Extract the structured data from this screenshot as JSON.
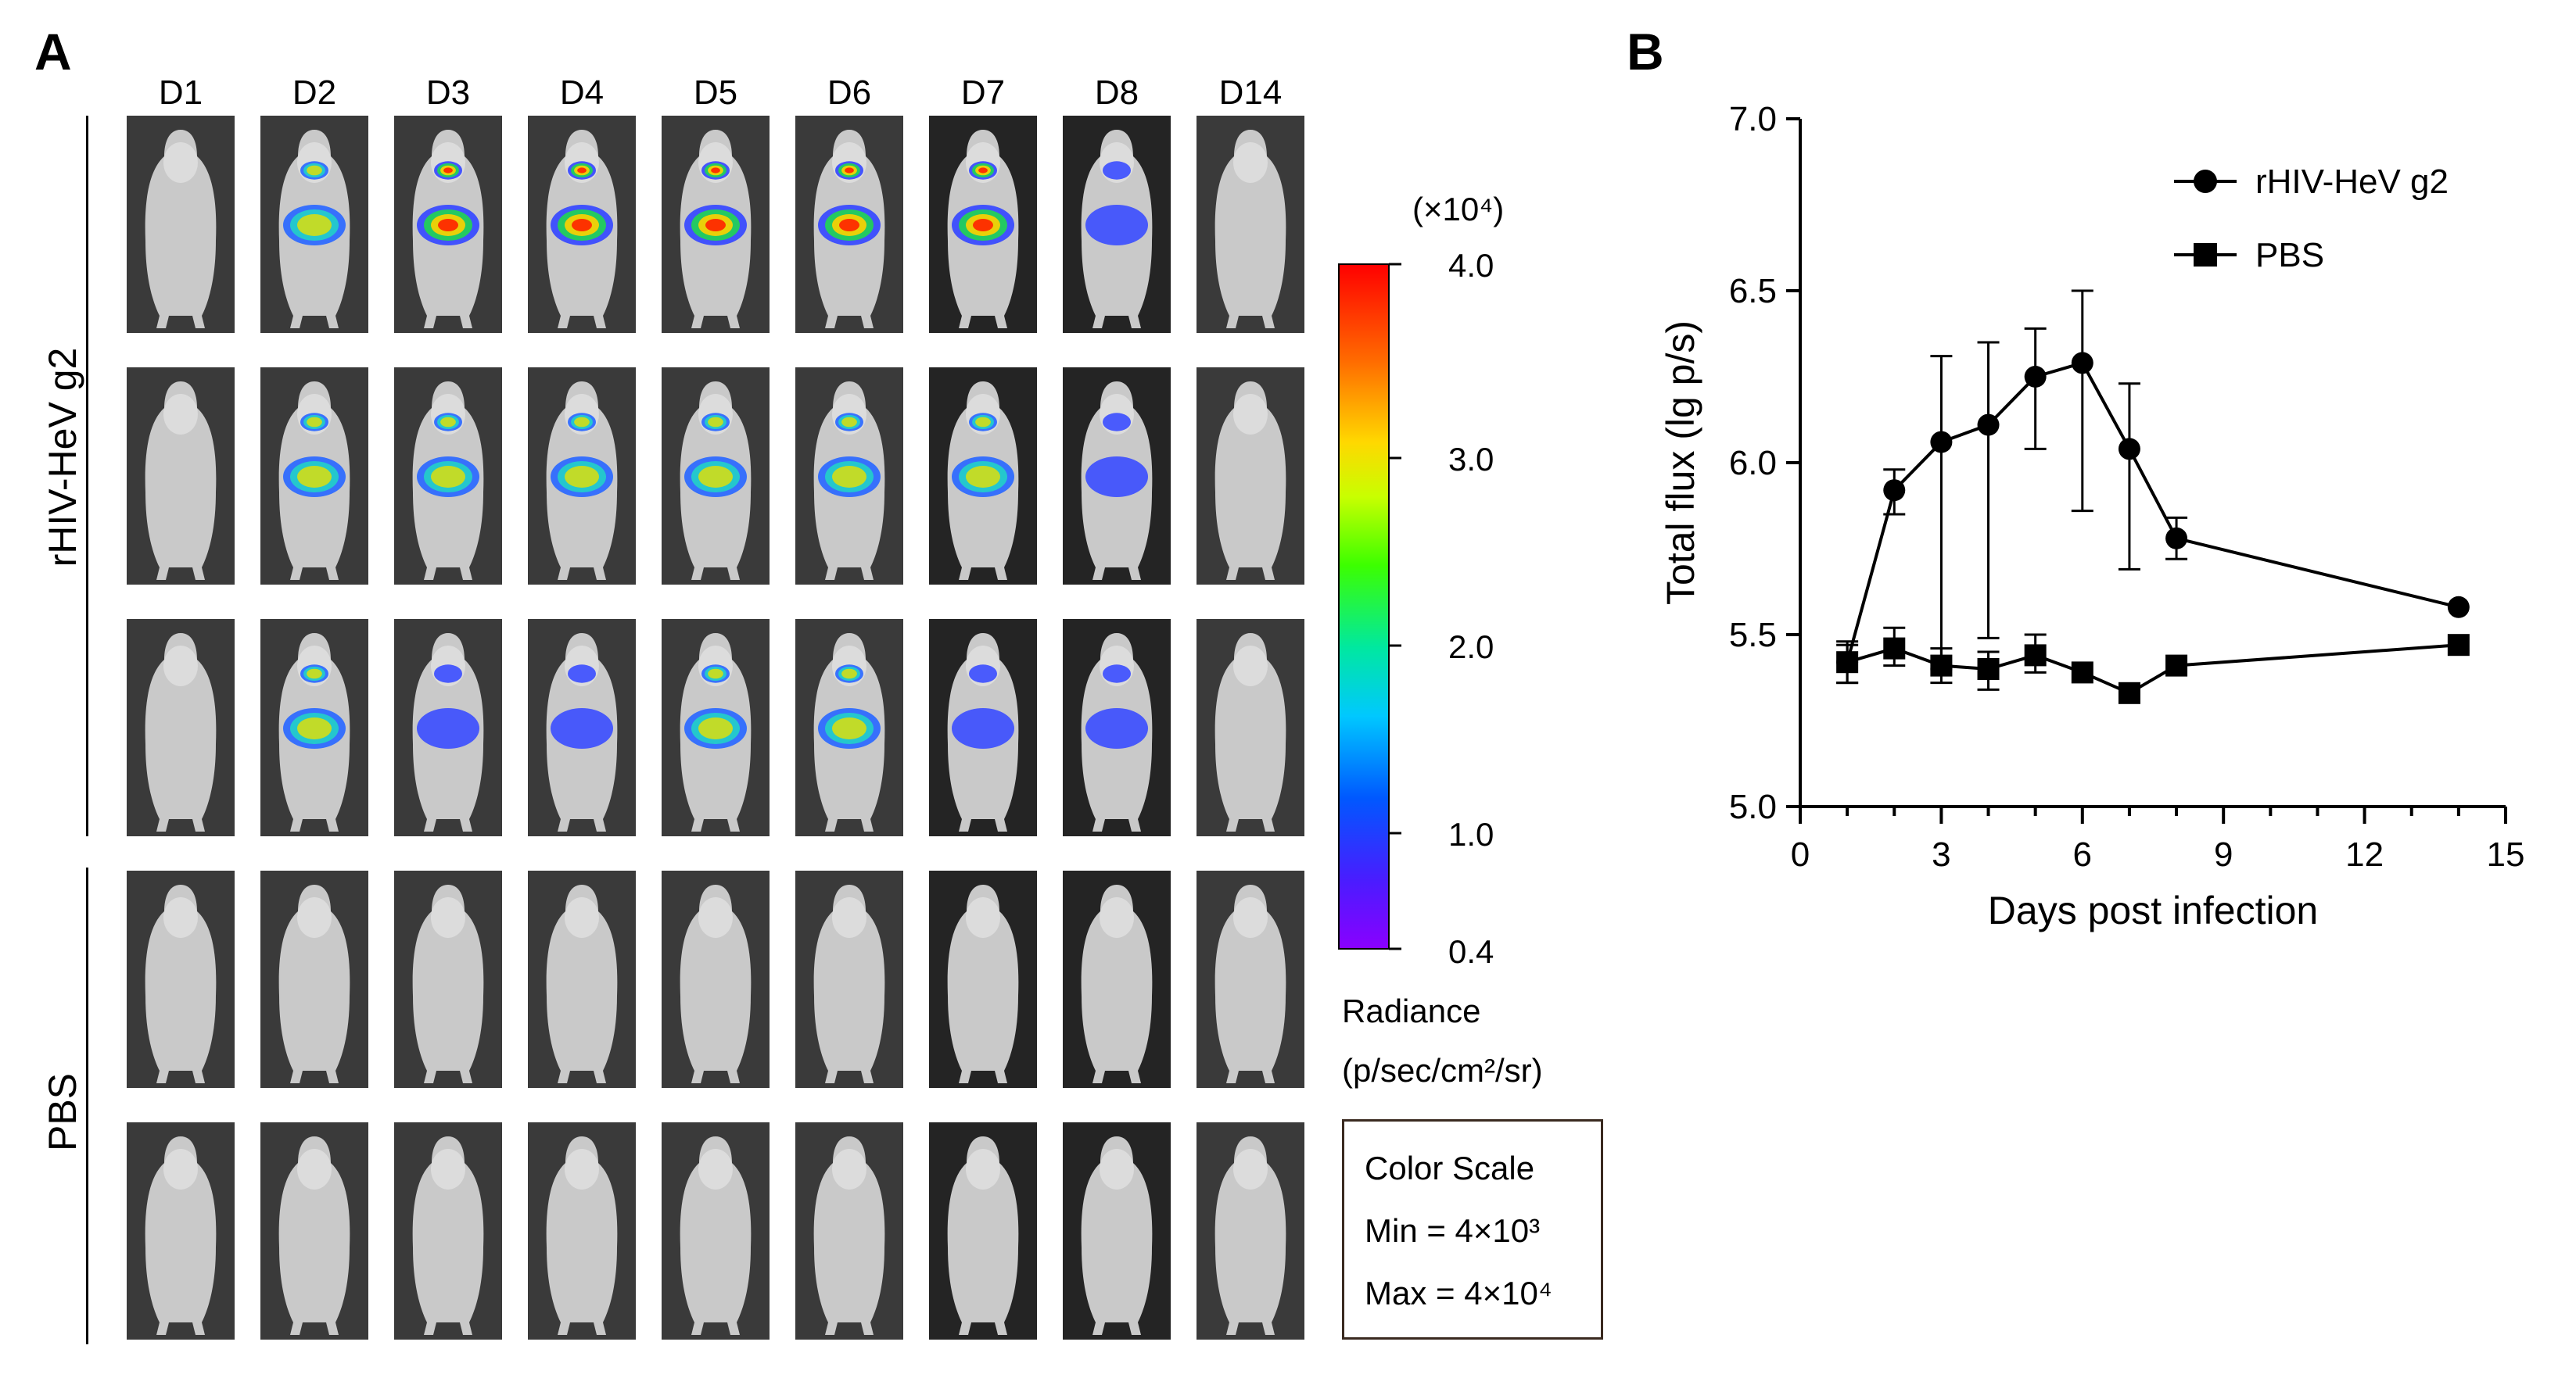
{
  "panels": {
    "a_label": "A",
    "b_label": "B"
  },
  "imaging": {
    "days": [
      "D1",
      "D2",
      "D3",
      "D4",
      "D5",
      "D6",
      "D7",
      "D8",
      "D14"
    ],
    "groups": [
      {
        "label": "rHIV-HeV g2",
        "rows": 3
      },
      {
        "label": "PBS",
        "rows": 2
      }
    ],
    "colorbar": {
      "exponent_label": "(×10⁴)",
      "ticks": [
        "4.0",
        "3.0",
        "2.0",
        "1.0",
        "0.4"
      ],
      "title_line1": "Radiance",
      "title_line2": "(p/sec/cm²/sr)"
    },
    "color_scale": {
      "title": "Color Scale",
      "min": "Min = 4×10³",
      "max": "Max = 4×10⁴"
    }
  },
  "chart_data": {
    "type": "line",
    "xlabel": "Days post infection",
    "ylabel": "Total flux (lg p/s)",
    "xlim": [
      0,
      15
    ],
    "ylim": [
      5.0,
      7.0
    ],
    "xticks": [
      0,
      3,
      6,
      9,
      12,
      15
    ],
    "xtick_labels": [
      "0",
      "3",
      "6",
      "9",
      "12",
      "15"
    ],
    "yticks": [
      5.0,
      5.5,
      6.0,
      6.5,
      7.0
    ],
    "ytick_labels": [
      "5.0",
      "5.5",
      "6.0",
      "6.5",
      "7.0"
    ],
    "x_minor_ticks": [
      1,
      2,
      4,
      5,
      7,
      8,
      10,
      11,
      13,
      14
    ],
    "legend_position": "top-right",
    "series": [
      {
        "name": "rHIV-HeV g2",
        "marker": "circle",
        "x": [
          1,
          2,
          3,
          4,
          5,
          6,
          7,
          8,
          14
        ],
        "y": [
          5.42,
          5.92,
          6.06,
          6.11,
          6.25,
          6.29,
          6.04,
          5.78,
          5.58
        ],
        "err_low": [
          5.36,
          5.85,
          5.4,
          5.49,
          6.04,
          5.86,
          5.69,
          5.72,
          5.58
        ],
        "err_high": [
          5.48,
          5.98,
          6.31,
          6.35,
          6.39,
          6.5,
          6.23,
          5.84,
          5.58
        ]
      },
      {
        "name": "PBS",
        "marker": "square",
        "x": [
          1,
          2,
          3,
          4,
          5,
          6,
          7,
          8,
          14
        ],
        "y": [
          5.42,
          5.46,
          5.41,
          5.4,
          5.44,
          5.39,
          5.33,
          5.41,
          5.47
        ],
        "err_low": [
          5.36,
          5.41,
          5.36,
          5.34,
          5.39,
          5.39,
          5.33,
          5.41,
          5.47
        ],
        "err_high": [
          5.47,
          5.52,
          5.46,
          5.45,
          5.5,
          5.39,
          5.33,
          5.41,
          5.47
        ]
      }
    ]
  }
}
